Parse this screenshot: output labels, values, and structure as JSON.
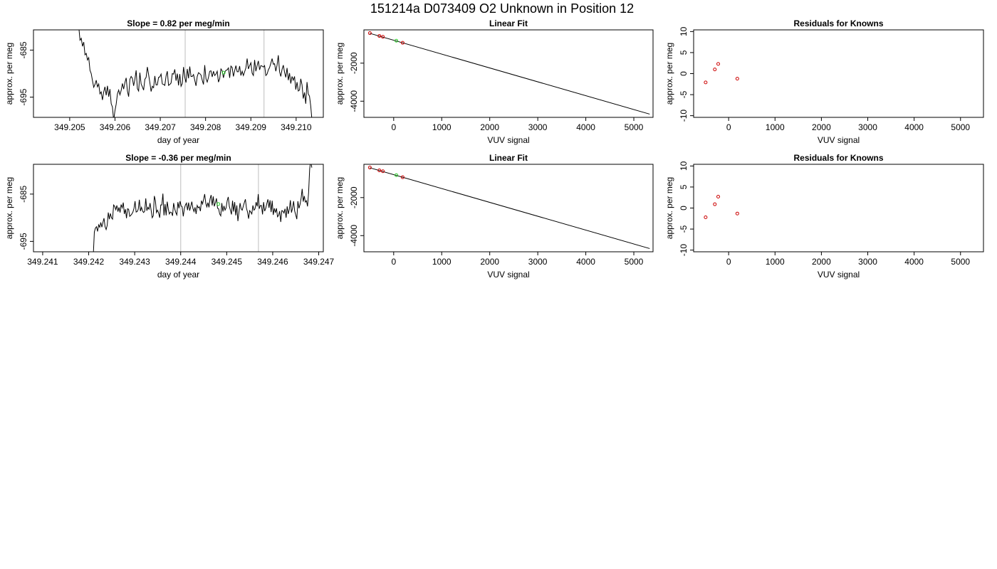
{
  "page_title": "151214a     D073409   O2 Unknown in Position  12",
  "colors": {
    "line": "#000000",
    "known_point": "#cc0000",
    "unknown_point": "#22cc22",
    "marker_line": "#c8c8c8",
    "frame": "#000000"
  },
  "chart_data": [
    {
      "id": "r1-trace",
      "type": "line",
      "title": "Slope =  0.82  per meg/min",
      "xlabel": "day of year",
      "ylabel": "approx. per meg",
      "xlim": [
        349.2042,
        349.2106
      ],
      "ylim": [
        -699.3,
        -680.7
      ],
      "xticks": [
        349.205,
        349.206,
        349.207,
        349.208,
        349.209,
        349.21
      ],
      "xtick_labels": [
        "349.205",
        "349.206",
        "349.207",
        "349.208",
        "349.209",
        "349.210"
      ],
      "yticks": [
        -685,
        -695
      ],
      "ytick_labels": [
        "-685",
        "-695"
      ],
      "vlines": [
        349.20755,
        349.20929
      ],
      "highlight_point": {
        "x": 349.2084,
        "y": -689.8
      },
      "series": [
        {
          "x_start": 349.2052,
          "x_end": 349.21035,
          "values": [
            -680.0,
            -682.9,
            -682.5,
            -684.2,
            -683.3,
            -686.0,
            -685.7,
            -687.1,
            -686.6,
            -689.3,
            -690.0,
            -691.5,
            -692.9,
            -692.3,
            -691.4,
            -692.8,
            -692.2,
            -694.3,
            -693.9,
            -695.6,
            -693.9,
            -692.8,
            -694.6,
            -692.6,
            -694.9,
            -693.3,
            -696.4,
            -697.1,
            -700.0,
            -697.9,
            -696.5,
            -694.3,
            -693.5,
            -694.5,
            -693.6,
            -692.1,
            -693.3,
            -691.9,
            -690.9,
            -693.7,
            -694.9,
            -691.2,
            -690.6,
            -691.0,
            -692.6,
            -691.2,
            -689.3,
            -693.2,
            -693.7,
            -689.8,
            -692.2,
            -692.8,
            -693.5,
            -691.2,
            -690.8,
            -688.6,
            -690.2,
            -691.9,
            -693.8,
            -692.7,
            -693.0,
            -690.5,
            -692.4,
            -692.4,
            -690.8,
            -690.7,
            -690.1,
            -692.2,
            -692.3,
            -692.5,
            -690.5,
            -689.5,
            -692.5,
            -692.3,
            -692.0,
            -690.0,
            -690.1,
            -689.1,
            -691.5,
            -690.0,
            -692.5,
            -690.1,
            -692.7,
            -692.1,
            -688.6,
            -690.8,
            -691.9,
            -689.0,
            -691.0,
            -688.5,
            -690.6,
            -690.6,
            -690.2,
            -691.4,
            -692.6,
            -690.6,
            -689.8,
            -690.0,
            -690.3,
            -691.4,
            -692.3,
            -688.2,
            -691.1,
            -691.8,
            -690.8,
            -689.5,
            -689.4,
            -690.7,
            -689.5,
            -690.4,
            -690.1,
            -689.5,
            -691.8,
            -691.1,
            -689.0,
            -689.4,
            -690.9,
            -689.7,
            -689.3,
            -689.2,
            -688.8,
            -690.9,
            -688.4,
            -688.7,
            -690.6,
            -689.4,
            -688.3,
            -689.6,
            -689.6,
            -688.4,
            -690.4,
            -689.5,
            -690.4,
            -689.6,
            -688.8,
            -686.8,
            -689.0,
            -688.3,
            -687.7,
            -689.9,
            -690.4,
            -687.1,
            -689.5,
            -688.3,
            -687.3,
            -689.2,
            -688.3,
            -688.4,
            -688.6,
            -688.3,
            -690.4,
            -690.1,
            -689.2,
            -688.7,
            -687.8,
            -686.8,
            -688.0,
            -687.9,
            -689.5,
            -688.2,
            -686.1,
            -689.6,
            -690.6,
            -689.1,
            -688.2,
            -689.7,
            -690.8,
            -688.8,
            -691.4,
            -689.9,
            -692.1,
            -690.6,
            -691.4,
            -690.6,
            -693.4,
            -691.8,
            -693.7,
            -693.5,
            -691.1,
            -692.4,
            -695.3,
            -694.0,
            -696.4,
            -691.8,
            -694.3,
            -694.8,
            -696.9,
            -700.0
          ]
        }
      ]
    },
    {
      "id": "r1-fit",
      "type": "scatter",
      "title": "Linear Fit",
      "xlabel": "VUV signal",
      "ylabel": "approx. per meg",
      "xlim": [
        -620,
        5400
      ],
      "ylim": [
        -4850,
        -250
      ],
      "xticks": [
        0,
        1000,
        2000,
        3000,
        4000,
        5000
      ],
      "xtick_labels": [
        "0",
        "1000",
        "2000",
        "3000",
        "4000",
        "5000"
      ],
      "yticks": [
        -2000,
        -4000
      ],
      "ytick_labels": [
        "-2000",
        "-4000"
      ],
      "fit_line": {
        "x": [
          -500,
          5330
        ],
        "y": [
          -430,
          -4680
        ]
      },
      "known_points": [
        {
          "x": -496,
          "y": -420
        },
        {
          "x": -298,
          "y": -570
        },
        {
          "x": -225,
          "y": -615
        },
        {
          "x": 187,
          "y": -930
        }
      ],
      "unknown_point": {
        "x": 55,
        "y": -820
      }
    },
    {
      "id": "r1-res",
      "type": "scatter",
      "title": "Residuals for Knowns",
      "xlabel": "VUV signal",
      "ylabel": "approx. per meg",
      "xlim": [
        -755,
        5495
      ],
      "ylim": [
        -10.4,
        10.4
      ],
      "xticks": [
        0,
        1000,
        2000,
        3000,
        4000,
        5000
      ],
      "xtick_labels": [
        "0",
        "1000",
        "2000",
        "3000",
        "4000",
        "5000"
      ],
      "yticks": [
        10,
        5,
        0,
        -5,
        -10
      ],
      "ytick_labels": [
        "10",
        "5",
        "0",
        "-5",
        "-10"
      ],
      "points": [
        {
          "x": -496,
          "y": -2.1
        },
        {
          "x": -298,
          "y": 1.0
        },
        {
          "x": -225,
          "y": 2.3
        },
        {
          "x": 187,
          "y": -1.2
        }
      ]
    },
    {
      "id": "r2-trace",
      "type": "line",
      "title": "Slope =  -0.36  per meg/min",
      "xlabel": "day of year",
      "ylabel": "approx. per meg",
      "xlim": [
        349.2408,
        349.2471
      ],
      "ylim": [
        -697.2,
        -678.7
      ],
      "xticks": [
        349.241,
        349.242,
        349.243,
        349.244,
        349.245,
        349.246,
        349.247
      ],
      "xtick_labels": [
        "349.241",
        "349.242",
        "349.243",
        "349.244",
        "349.245",
        "349.246",
        "349.247"
      ],
      "yticks": [
        -685,
        -695
      ],
      "ytick_labels": [
        "-685",
        "-695"
      ],
      "vlines": [
        349.244,
        349.24569
      ],
      "highlight_point": {
        "x": 349.24482,
        "y": -687.1
      },
      "series": [
        {
          "x_start": 349.2421,
          "x_end": 349.24685,
          "values": [
            -698.0,
            -693.0,
            -692.2,
            -691.9,
            -692.9,
            -691.5,
            -692.0,
            -691.0,
            -692.0,
            -691.0,
            -690.1,
            -691.9,
            -692.5,
            -691.6,
            -688.9,
            -690.3,
            -689.1,
            -690.0,
            -690.3,
            -687.3,
            -687.6,
            -688.3,
            -687.4,
            -688.7,
            -687.8,
            -688.9,
            -687.2,
            -687.9,
            -686.8,
            -689.2,
            -688.2,
            -690.1,
            -688.1,
            -688.2,
            -689.7,
            -689.5,
            -689.2,
            -688.8,
            -688.0,
            -686.5,
            -688.8,
            -688.7,
            -688.2,
            -686.2,
            -688.6,
            -687.8,
            -688.6,
            -688.9,
            -688.6,
            -685.9,
            -688.5,
            -687.8,
            -688.2,
            -686.9,
            -688.4,
            -690.0,
            -689.6,
            -685.4,
            -686.4,
            -688.9,
            -688.4,
            -689.0,
            -690.0,
            -687.3,
            -687.3,
            -684.9,
            -689.5,
            -687.1,
            -689.5,
            -686.6,
            -688.1,
            -689.2,
            -688.8,
            -688.9,
            -689.6,
            -686.9,
            -688.1,
            -688.9,
            -689.4,
            -686.7,
            -688.0,
            -686.5,
            -687.5,
            -687.7,
            -689.7,
            -688.1,
            -687.3,
            -686.9,
            -688.4,
            -686.8,
            -688.5,
            -687.6,
            -686.6,
            -688.0,
            -688.7,
            -687.8,
            -689.2,
            -687.4,
            -687.9,
            -687.7,
            -688.6,
            -686.4,
            -687.1,
            -686.1,
            -685.0,
            -686.9,
            -687.7,
            -686.8,
            -687.8,
            -686.0,
            -685.2,
            -687.4,
            -685.5,
            -687.6,
            -686.8,
            -685.9,
            -688.0,
            -688.1,
            -689.2,
            -689.6,
            -686.9,
            -688.7,
            -687.5,
            -688.4,
            -687.9,
            -686.4,
            -685.6,
            -687.6,
            -688.4,
            -689.3,
            -686.4,
            -688.7,
            -686.7,
            -689.5,
            -687.4,
            -690.7,
            -688.8,
            -686.9,
            -688.1,
            -688.4,
            -687.6,
            -686.8,
            -686.1,
            -688.0,
            -688.8,
            -690.2,
            -688.5,
            -688.8,
            -689.2,
            -687.4,
            -688.4,
            -688.1,
            -686.7,
            -687.6,
            -685.0,
            -688.1,
            -687.4,
            -687.4,
            -689.3,
            -686.7,
            -688.6,
            -688.0,
            -687.0,
            -686.1,
            -687.9,
            -686.3,
            -688.8,
            -686.4,
            -689.4,
            -688.0,
            -688.9,
            -688.0,
            -689.8,
            -689.5,
            -688.6,
            -690.9,
            -688.5,
            -688.6,
            -689.0,
            -688.1,
            -690.0,
            -687.6,
            -689.2,
            -688.2,
            -686.3,
            -688.9,
            -688.0,
            -686.5,
            -688.6,
            -689.4,
            -690.3,
            -686.5,
            -688.0,
            -687.2,
            -685.9,
            -683.9,
            -686.6,
            -685.4,
            -686.7,
            -686.4,
            -687.6,
            -684.7,
            -679.7,
            -677.8,
            -679.4
          ]
        }
      ]
    },
    {
      "id": "r2-fit",
      "type": "scatter",
      "title": "Linear Fit",
      "xlabel": "VUV signal",
      "ylabel": "approx. per meg",
      "xlim": [
        -620,
        5400
      ],
      "ylim": [
        -4850,
        -250
      ],
      "xticks": [
        0,
        1000,
        2000,
        3000,
        4000,
        5000
      ],
      "xtick_labels": [
        "0",
        "1000",
        "2000",
        "3000",
        "4000",
        "5000"
      ],
      "yticks": [
        -2000,
        -4000
      ],
      "ytick_labels": [
        "-2000",
        "-4000"
      ],
      "fit_line": {
        "x": [
          -500,
          5330
        ],
        "y": [
          -430,
          -4680
        ]
      },
      "known_points": [
        {
          "x": -496,
          "y": -420
        },
        {
          "x": -298,
          "y": -570
        },
        {
          "x": -225,
          "y": -615
        },
        {
          "x": 187,
          "y": -930
        }
      ],
      "unknown_point": {
        "x": 55,
        "y": -820
      }
    },
    {
      "id": "r2-res",
      "type": "scatter",
      "title": "Residuals for Knowns",
      "xlabel": "VUV signal",
      "ylabel": "approx. per meg",
      "xlim": [
        -755,
        5495
      ],
      "ylim": [
        -10.4,
        10.4
      ],
      "xticks": [
        0,
        1000,
        2000,
        3000,
        4000,
        5000
      ],
      "xtick_labels": [
        "0",
        "1000",
        "2000",
        "3000",
        "4000",
        "5000"
      ],
      "yticks": [
        10,
        5,
        0,
        -5,
        -10
      ],
      "ytick_labels": [
        "10",
        "5",
        "0",
        "-5",
        "-10"
      ],
      "points": [
        {
          "x": -496,
          "y": -2.2
        },
        {
          "x": -298,
          "y": 0.9
        },
        {
          "x": -225,
          "y": 2.7
        },
        {
          "x": 187,
          "y": -1.3
        }
      ]
    }
  ]
}
